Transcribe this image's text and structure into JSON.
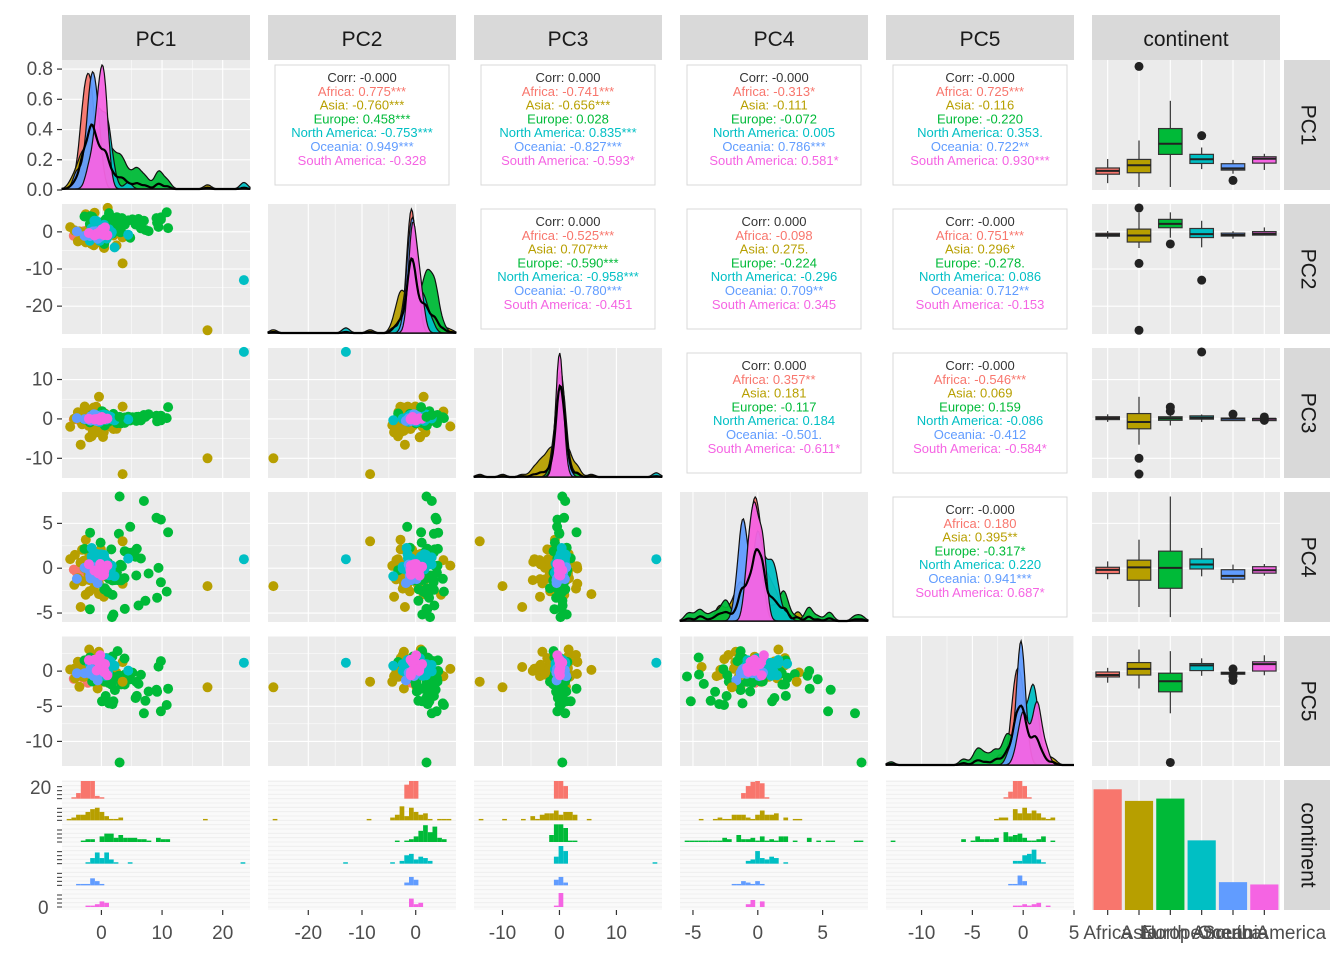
{
  "colors": {
    "Africa": "#F8766D",
    "Asia": "#B79F00",
    "Europe": "#00BA38",
    "North America": "#00BFC4",
    "Oceania": "#619CFF",
    "South America": "#F564E3",
    "overall": "#333333",
    "panel_bg": "#EBEBEB",
    "strip_bg": "#D9D9D9"
  },
  "chart_data": {
    "type": "scatter",
    "variables": [
      "PC1",
      "PC2",
      "PC3",
      "PC4",
      "PC5",
      "continent"
    ],
    "groups": [
      "Africa",
      "Asia",
      "Europe",
      "North America",
      "Oceania",
      "South America"
    ],
    "legend_position": "none",
    "ranges": {
      "PC1": [
        -6.5,
        24.5
      ],
      "PC2": [
        -27.5,
        7.5
      ],
      "PC3": [
        -15,
        18
      ],
      "PC4": [
        -6,
        8.5
      ],
      "PC5": [
        -13.5,
        5
      ]
    },
    "ticks": {
      "PC1": [
        0,
        10,
        20
      ],
      "PC2": [
        -20,
        -10,
        0
      ],
      "PC3": [
        -10,
        0,
        10
      ],
      "PC4": [
        -5,
        0,
        5
      ],
      "PC5": [
        -10,
        -5,
        0,
        5
      ]
    },
    "row_ticks": {
      "PC1": [
        "0.0",
        "0.2",
        "0.4",
        "0.6",
        "0.8"
      ],
      "PC2": [
        "0",
        "-10",
        "-20"
      ],
      "PC3": [
        "10",
        "0",
        "-10"
      ],
      "PC4": [
        "5",
        "0",
        "-5"
      ],
      "PC5": [
        "0",
        "-5",
        "-10"
      ]
    },
    "pc1_density_ylim": [
      0,
      0.86
    ],
    "continent_axis_labels": [
      "Africa",
      "Asia",
      "Europe",
      "North America",
      "Oceania",
      "South America"
    ],
    "continent_counts": [
      52,
      47,
      48,
      30,
      12,
      11
    ],
    "correlations": [
      {
        "row": "PC1",
        "col": "PC2",
        "lines": [
          "Corr: -0.000",
          "Africa: 0.775***",
          "Asia: -0.760***",
          "Europe: 0.458***",
          "North America: -0.753***",
          "Oceania: 0.949***",
          "South America: -0.328"
        ]
      },
      {
        "row": "PC1",
        "col": "PC3",
        "lines": [
          "Corr: 0.000",
          "Africa: -0.741***",
          "Asia: -0.656***",
          "Europe: 0.028",
          "North America: 0.835***",
          "Oceania: -0.827***",
          "South America: -0.593*"
        ]
      },
      {
        "row": "PC1",
        "col": "PC4",
        "lines": [
          "Corr: -0.000",
          "Africa: -0.313*",
          "Asia: -0.111",
          "Europe: -0.072",
          "North America: 0.005",
          "Oceania: 0.786***",
          "South America: 0.581*"
        ]
      },
      {
        "row": "PC1",
        "col": "PC5",
        "lines": [
          "Corr: -0.000",
          "Africa: 0.725***",
          "Asia: -0.116",
          "Europe: -0.220",
          "North America: 0.353.",
          "Oceania: 0.722**",
          "South America: 0.930***"
        ]
      },
      {
        "row": "PC2",
        "col": "PC3",
        "lines": [
          "Corr: 0.000",
          "Africa: -0.525***",
          "Asia: 0.707***",
          "Europe: -0.590***",
          "North America: -0.958***",
          "Oceania: -0.780***",
          "South America: -0.451"
        ]
      },
      {
        "row": "PC2",
        "col": "PC4",
        "lines": [
          "Corr: 0.000",
          "Africa: -0.098",
          "Asia: 0.275.",
          "Europe: -0.224",
          "North America: -0.296",
          "Oceania: 0.709**",
          "South America: 0.345"
        ]
      },
      {
        "row": "PC2",
        "col": "PC5",
        "lines": [
          "Corr: -0.000",
          "Africa: 0.751***",
          "Asia: 0.296*",
          "Europe: -0.278.",
          "North America: 0.086",
          "Oceania: 0.712**",
          "South America: -0.153"
        ]
      },
      {
        "row": "PC3",
        "col": "PC4",
        "lines": [
          "Corr: 0.000",
          "Africa: 0.357**",
          "Asia: 0.181",
          "Europe: -0.117",
          "North America: 0.184",
          "Oceania: -0.501.",
          "South America: -0.611*"
        ]
      },
      {
        "row": "PC3",
        "col": "PC5",
        "lines": [
          "Corr: -0.000",
          "Africa: -0.546***",
          "Asia: 0.069",
          "Europe: 0.159",
          "North America: -0.086",
          "Oceania: -0.412",
          "South America: -0.584*"
        ]
      },
      {
        "row": "PC4",
        "col": "PC5",
        "lines": [
          "Corr: -0.000",
          "Africa: 0.180",
          "Asia: 0.395**",
          "Europe: -0.317*",
          "North America: 0.220",
          "Oceania: 0.941***",
          "South America: 0.687*"
        ]
      }
    ],
    "group_stats": {
      "Africa": {
        "PC1": [
          -2.5,
          1.0
        ],
        "PC2": [
          -0.8,
          0.5
        ],
        "PC3": [
          0.3,
          0.4
        ],
        "PC4": [
          -0.3,
          0.5
        ],
        "PC5": [
          -0.5,
          0.5
        ]
      },
      "Asia": {
        "PC1": [
          -1.0,
          2.0
        ],
        "PC2": [
          -0.5,
          2.5
        ],
        "PC3": [
          -1.2,
          2.5
        ],
        "PC4": [
          0.3,
          1.6
        ],
        "PC5": [
          0.3,
          1.2
        ]
      },
      "Europe": {
        "PC1": [
          2.0,
          4.0
        ],
        "PC2": [
          2.0,
          2.0
        ],
        "PC3": [
          0.1,
          0.8
        ],
        "PC4": [
          -0.2,
          2.5
        ],
        "PC5": [
          -0.6,
          2.0
        ]
      },
      "North America": {
        "PC1": [
          -0.5,
          1.5
        ],
        "PC2": [
          -0.2,
          1.5
        ],
        "PC3": [
          0.2,
          0.6
        ],
        "PC4": [
          0.3,
          0.8
        ],
        "PC5": [
          0.5,
          0.7
        ]
      },
      "Oceania": {
        "PC1": [
          -1.2,
          1.0
        ],
        "PC2": [
          -0.5,
          0.6
        ],
        "PC3": [
          0.0,
          0.5
        ],
        "PC4": [
          -0.3,
          0.6
        ],
        "PC5": [
          -0.3,
          0.4
        ]
      },
      "South America": {
        "PC1": [
          0.0,
          1.0
        ],
        "PC2": [
          0.0,
          0.5
        ],
        "PC3": [
          0.2,
          0.4
        ],
        "PC4": [
          -0.2,
          0.5
        ],
        "PC5": [
          1.2,
          0.8
        ]
      }
    },
    "outliers": [
      {
        "group": "North America",
        "PC1": 23.5,
        "PC2": -13.0,
        "PC3": 17.0,
        "PC4": 1.0,
        "PC5": 1.2
      },
      {
        "group": "Asia",
        "PC1": 17.5,
        "PC2": -26.5,
        "PC3": -10.0,
        "PC4": -2.0,
        "PC5": -2.3
      },
      {
        "group": "Asia",
        "PC1": 3.5,
        "PC2": -8.5,
        "PC3": -14.0,
        "PC4": 3.0,
        "PC5": -1.5
      },
      {
        "group": "Europe",
        "PC1": 3.0,
        "PC2": 2.0,
        "PC3": 0.5,
        "PC4": 8.0,
        "PC5": -13.0
      },
      {
        "group": "Europe",
        "PC1": 7.0,
        "PC2": 3.0,
        "PC3": 1.0,
        "PC4": 7.5,
        "PC5": -6.0
      },
      {
        "group": "Europe",
        "PC1": 11.0,
        "PC2": 1.0,
        "PC3": 3.0,
        "PC4": 4.0,
        "PC5": -2.5
      }
    ]
  }
}
